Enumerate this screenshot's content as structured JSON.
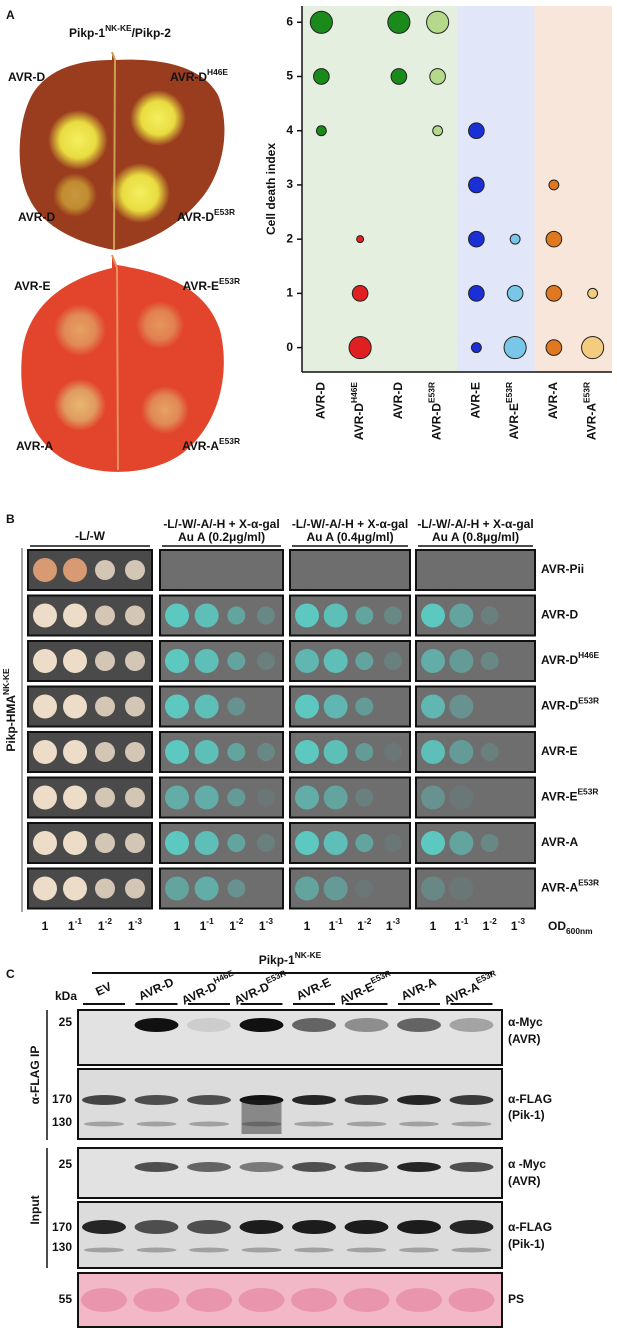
{
  "panel_a": {
    "label": "A",
    "title": {
      "text": "Pikp-1",
      "sup": "NK-KE",
      "after": "/Pikp-2",
      "color": "#a45ad6"
    },
    "leaf_labels": [
      {
        "text": "AVR-D",
        "color": "#1a8a1a"
      },
      {
        "text": "AVR-D",
        "sup": "H46E",
        "color": "#e02020"
      },
      {
        "text": "AVR-D",
        "color": "#1a8a1a"
      },
      {
        "text": "AVR-D",
        "sup": "E53R",
        "color": "#b5d98a"
      },
      {
        "text": "AVR-E",
        "color": "#1a2fd6"
      },
      {
        "text": "AVR-E",
        "sup": "E53R",
        "color": "#6fc3ea"
      },
      {
        "text": "AVR-A",
        "color": "#e07820"
      },
      {
        "text": "AVR-A",
        "sup": "E53R",
        "color": "#f0b820"
      }
    ]
  },
  "chart_data": {
    "type": "scatter",
    "y_label": "Cell death index",
    "ylim": [
      -0.45,
      6.3
    ],
    "yticks": [
      0,
      1,
      2,
      3,
      4,
      5,
      6
    ],
    "categories": [
      {
        "text": "AVR-D",
        "color": "#1a8a1a"
      },
      {
        "text": "AVR-D",
        "sup": "H46E",
        "color": "#e02020"
      },
      {
        "text": "AVR-D",
        "color": "#1a8a1a"
      },
      {
        "text": "AVR-D",
        "sup": "E53R",
        "color": "#b5d98a"
      },
      {
        "text": "AVR-E",
        "color": "#1a2fd6"
      },
      {
        "text": "AVR-E",
        "sup": "E53R",
        "color": "#79c7e8"
      },
      {
        "text": "AVR-A",
        "color": "#e07820"
      },
      {
        "text": "AVR-A",
        "sup": "E53R",
        "color": "#f3cc80"
      }
    ],
    "series": [
      {
        "color": "#1a8a1a",
        "values": [
          6,
          5,
          4
        ],
        "sizes": [
          10,
          5,
          2
        ]
      },
      {
        "color": "#e02020",
        "values": [
          2,
          1,
          0
        ],
        "sizes": [
          1,
          5,
          10
        ]
      },
      {
        "color": "#1a8a1a",
        "values": [
          6,
          5
        ],
        "sizes": [
          10,
          5
        ]
      },
      {
        "color": "#b5d98a",
        "values": [
          6,
          5,
          4
        ],
        "sizes": [
          10,
          5,
          2
        ]
      },
      {
        "color": "#1a2fd6",
        "values": [
          4,
          3,
          2,
          1,
          0
        ],
        "sizes": [
          5,
          5,
          5,
          5,
          2
        ]
      },
      {
        "color": "#79c7e8",
        "values": [
          2,
          1,
          0
        ],
        "sizes": [
          2,
          5,
          10
        ]
      },
      {
        "color": "#e07820",
        "values": [
          3,
          2,
          1,
          0
        ],
        "sizes": [
          2,
          5,
          5,
          5
        ]
      },
      {
        "color": "#f3cc80",
        "values": [
          1,
          0
        ],
        "sizes": [
          2,
          10
        ]
      }
    ],
    "background_bands": [
      {
        "from": 0,
        "to": 3,
        "color": "#e4efdf"
      },
      {
        "from": 4,
        "to": 5,
        "color": "#e1e6f8"
      },
      {
        "from": 6,
        "to": 7,
        "color": "#f8e6da"
      }
    ]
  },
  "panel_b": {
    "label": "B",
    "column_headers": [
      [
        "-L/-W"
      ],
      [
        "-L/-W/-A/-H + X-α-gal",
        "Au A (0.2μg/ml)"
      ],
      [
        "-L/-W/-A/-H + X-α-gal",
        "Au A (0.4μg/ml)"
      ],
      [
        "-L/-W/-A/-H + X-α-gal",
        "Au A (0.8μg/ml)"
      ]
    ],
    "rows": [
      {
        "text": "AVR-Pii",
        "color": "#111111"
      },
      {
        "text": "AVR-D",
        "color": "#1a8a1a"
      },
      {
        "text": "AVR-D",
        "sup": "H46E",
        "color": "#e02020"
      },
      {
        "text": "AVR-D",
        "sup": "E53R",
        "color": "#b5d98a"
      },
      {
        "text": "AVR-E",
        "color": "#3a3ad6"
      },
      {
        "text": "AVR-E",
        "sup": "E53R",
        "color": "#6fc3ea"
      },
      {
        "text": "AVR-A",
        "color": "#e07820"
      },
      {
        "text": "AVR-A",
        "sup": "E53R",
        "color": "#f0b820"
      }
    ],
    "y_label": {
      "text": "Pikp-HMA",
      "sup": "NK-KE",
      "color": "#a45ad6"
    },
    "dilutions": [
      {
        "text": "1"
      },
      {
        "text": "1",
        "sup": "-1"
      },
      {
        "text": "1",
        "sup": "-2"
      },
      {
        "text": "1",
        "sup": "-3"
      }
    ],
    "od_label": {
      "text": "OD",
      "sub": "600nm"
    }
  },
  "panel_c": {
    "label": "C",
    "header": {
      "text": "Pikp-1",
      "sup": "NK-KE",
      "color": "#a45ad6"
    },
    "kda": "kDa",
    "lanes": [
      {
        "text": "EV",
        "color": "#111111"
      },
      {
        "text": "AVR-D",
        "color": "#1a8a1a"
      },
      {
        "text": "AVR-D",
        "sup": "H46E",
        "color": "#e02020"
      },
      {
        "text": "AVR-D",
        "sup": "E53R",
        "color": "#b5d98a"
      },
      {
        "text": "AVR-E",
        "color": "#1a2fd6"
      },
      {
        "text": "AVR-E",
        "sup": "E53R",
        "color": "#6fc3ea"
      },
      {
        "text": "AVR-A",
        "color": "#e07820"
      },
      {
        "text": "AVR-A",
        "sup": "E53R",
        "color": "#f0b820"
      }
    ],
    "markers": [
      25,
      170,
      130,
      25,
      170,
      130,
      55
    ],
    "side_labels": [
      "α-FLAG IP",
      "Input"
    ],
    "blot_labels": [
      [
        "α-Myc",
        "(AVR)"
      ],
      [
        "α-FLAG",
        "(Pik-1)"
      ],
      [
        "α -Myc",
        "(AVR)"
      ],
      [
        "α-FLAG",
        "(Pik-1)"
      ],
      [
        "PS"
      ]
    ]
  }
}
